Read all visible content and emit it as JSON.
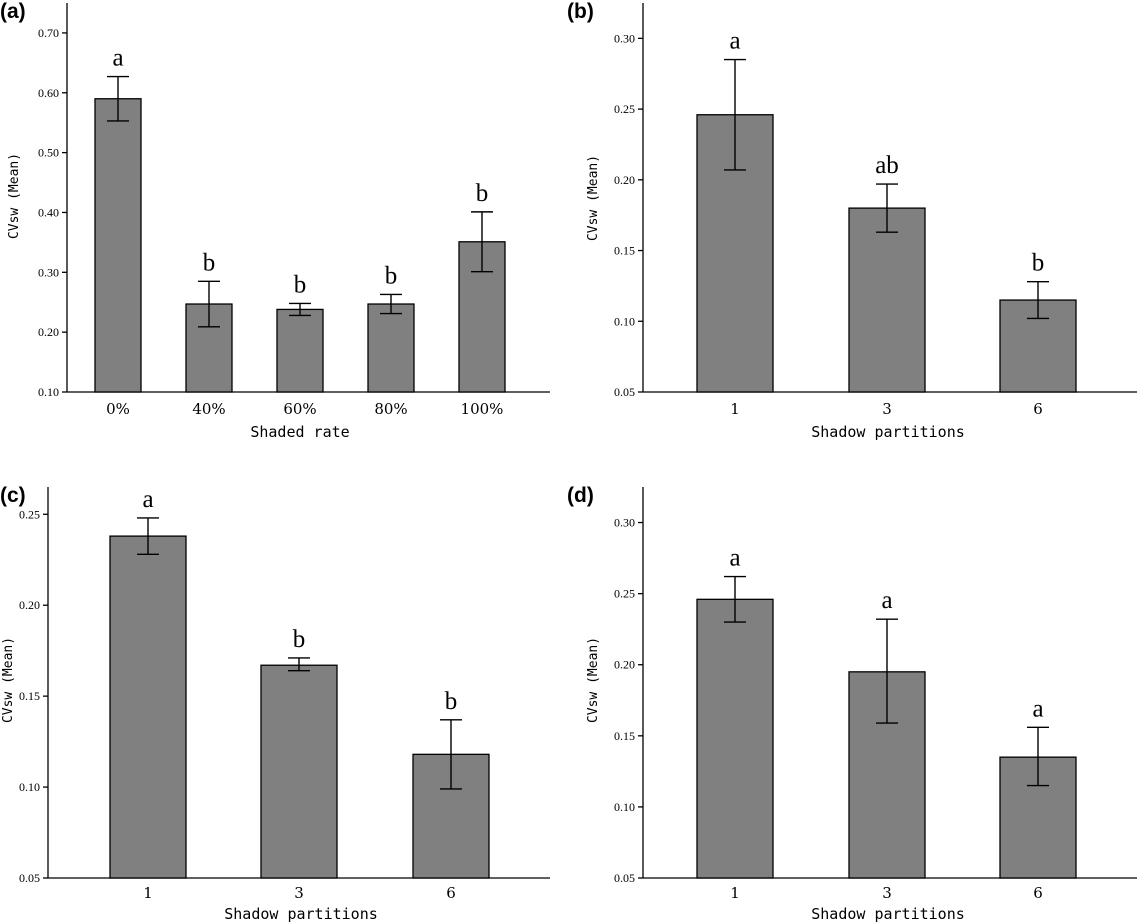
{
  "chart_data": [
    {
      "panel_label": "(a)",
      "type": "bar",
      "xlabel": "Shaded rate",
      "ylabel": "CVsw (Mean)",
      "categories": [
        "0%",
        "40%",
        "60%",
        "80%",
        "100%"
      ],
      "values": [
        0.59,
        0.247,
        0.238,
        0.247,
        0.351
      ],
      "error_upper": [
        0.627,
        0.285,
        0.248,
        0.263,
        0.401
      ],
      "error_lower": [
        0.553,
        0.209,
        0.228,
        0.231,
        0.301
      ],
      "significance": [
        "a",
        "b",
        "b",
        "b",
        "b"
      ],
      "ylim": [
        0.1,
        0.75
      ],
      "yticks": [
        0.1,
        0.2,
        0.3,
        0.4,
        0.5,
        0.6,
        0.7
      ],
      "ytick_labels": [
        "0.10",
        "0.20",
        "0.30",
        "0.40",
        "0.50",
        "0.60",
        "0.70"
      ]
    },
    {
      "panel_label": "(b)",
      "type": "bar",
      "xlabel": "Shadow partitions",
      "ylabel": "CVsw (Mean)",
      "categories": [
        "1",
        "3",
        "6"
      ],
      "values": [
        0.246,
        0.18,
        0.115
      ],
      "error_upper": [
        0.285,
        0.197,
        0.128
      ],
      "error_lower": [
        0.207,
        0.163,
        0.102
      ],
      "significance": [
        "a",
        "ab",
        "b"
      ],
      "ylim": [
        0.05,
        0.325
      ],
      "yticks": [
        0.05,
        0.1,
        0.15,
        0.2,
        0.25,
        0.3
      ],
      "ytick_labels": [
        "0.05",
        "0.10",
        "0.15",
        "0.20",
        "0.25",
        "0.30"
      ]
    },
    {
      "panel_label": "(c)",
      "type": "bar",
      "xlabel": "Shadow partitions",
      "ylabel": "CVsw (Mean)",
      "categories": [
        "1",
        "3",
        "6"
      ],
      "values": [
        0.238,
        0.167,
        0.118
      ],
      "error_upper": [
        0.248,
        0.171,
        0.137
      ],
      "error_lower": [
        0.228,
        0.164,
        0.099
      ],
      "significance": [
        "a",
        "b",
        "b"
      ],
      "ylim": [
        0.05,
        0.265
      ],
      "yticks": [
        0.05,
        0.1,
        0.15,
        0.2,
        0.25
      ],
      "ytick_labels": [
        "0.05",
        "0.10",
        "0.15",
        "0.20",
        "0.25"
      ]
    },
    {
      "panel_label": "(d)",
      "type": "bar",
      "xlabel": "Shadow partitions",
      "ylabel": "CVsw (Mean)",
      "categories": [
        "1",
        "3",
        "6"
      ],
      "values": [
        0.246,
        0.195,
        0.135
      ],
      "error_upper": [
        0.262,
        0.232,
        0.156
      ],
      "error_lower": [
        0.23,
        0.159,
        0.115
      ],
      "significance": [
        "a",
        "a",
        "a"
      ],
      "ylim": [
        0.05,
        0.325
      ],
      "yticks": [
        0.05,
        0.1,
        0.15,
        0.2,
        0.25,
        0.3
      ],
      "ytick_labels": [
        "0.05",
        "0.10",
        "0.15",
        "0.20",
        "0.25",
        "0.30"
      ]
    }
  ]
}
